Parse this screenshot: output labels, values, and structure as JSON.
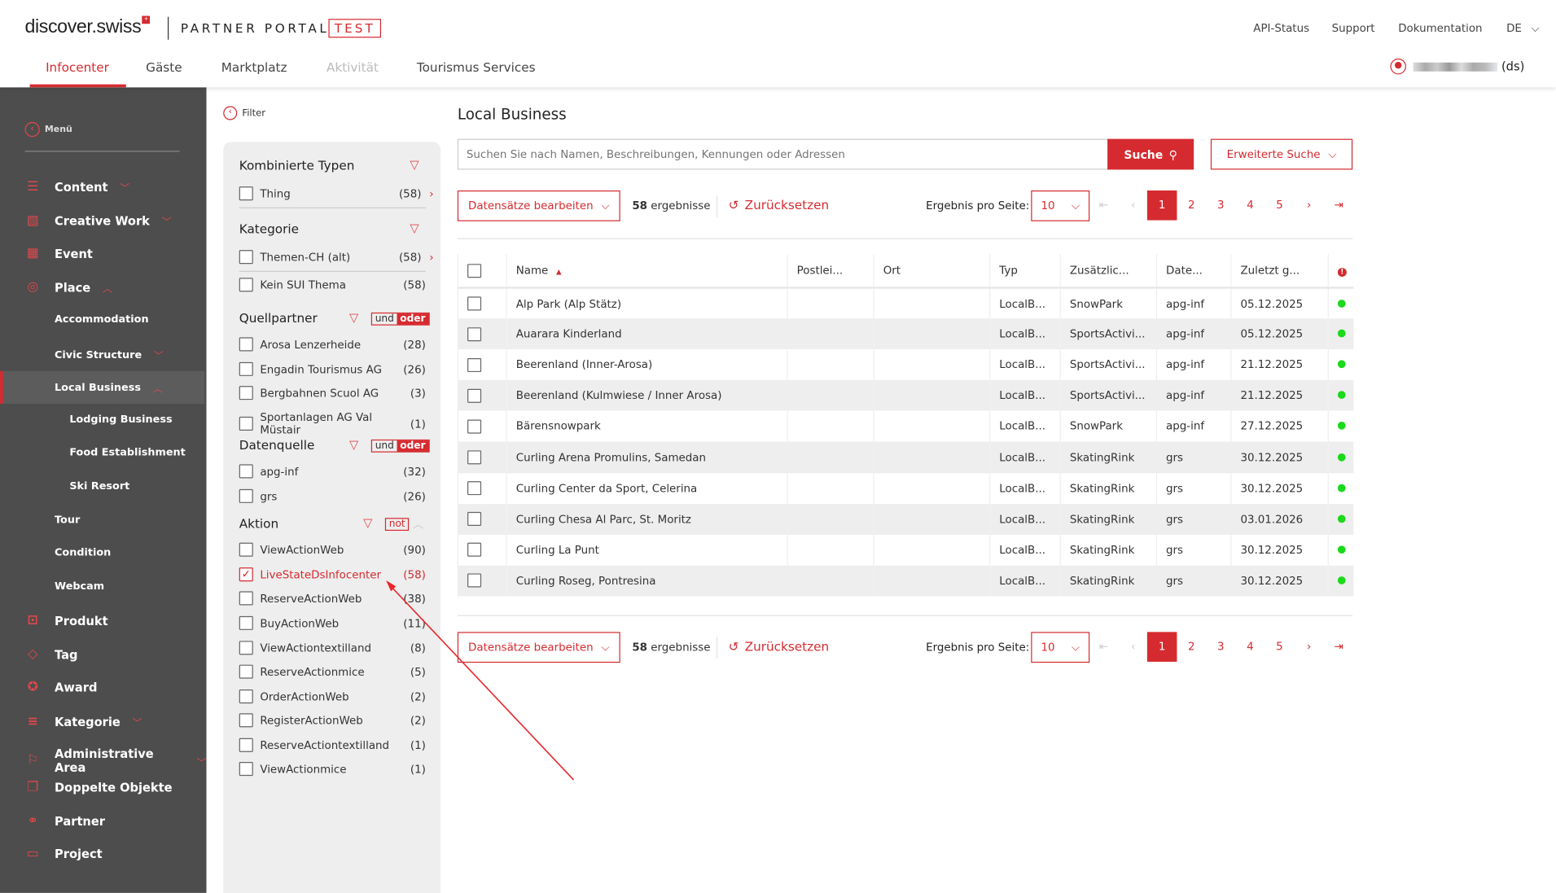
{
  "header": {
    "logo": "discover.swiss",
    "subtitle": "PARTNER PORTAL",
    "env_badge": "TEST",
    "nav": [
      {
        "label": "Infocenter",
        "state": "active"
      },
      {
        "label": "Gäste"
      },
      {
        "label": "Marktplatz"
      },
      {
        "label": "Aktivität",
        "state": "disabled"
      },
      {
        "label": "Tourismus Services"
      }
    ],
    "links": [
      "API-Status",
      "Support",
      "Dokumentation"
    ],
    "language": "DE",
    "user_suffix": "(ds)"
  },
  "sidebar": {
    "menu_label": "Menü",
    "items": [
      {
        "label": "Content",
        "icon": "list-icon",
        "expand": "down"
      },
      {
        "label": "Creative Work",
        "icon": "image-icon",
        "expand": "down"
      },
      {
        "label": "Event",
        "icon": "calendar-icon"
      },
      {
        "label": "Place",
        "icon": "map-pin-icon",
        "expand": "up"
      },
      {
        "label": "Accommodation"
      },
      {
        "label": "Civic Structure",
        "expand": "down"
      },
      {
        "label": "Local Business",
        "expand": "up",
        "selected": true
      },
      {
        "label": "Lodging Business"
      },
      {
        "label": "Food Establishment"
      },
      {
        "label": "Ski Resort"
      },
      {
        "label": "Tour"
      },
      {
        "label": "Condition"
      },
      {
        "label": "Webcam"
      },
      {
        "label": "Produkt",
        "icon": "box-icon"
      },
      {
        "label": "Tag",
        "icon": "tag-icon"
      },
      {
        "label": "Award",
        "icon": "award-icon"
      },
      {
        "label": "Kategorie",
        "icon": "lines-icon",
        "expand": "down"
      },
      {
        "label": "Administrative Area",
        "icon": "flag-icon",
        "expand": "down"
      },
      {
        "label": "Doppelte Objekte",
        "icon": "copy-icon"
      },
      {
        "label": "Partner",
        "icon": "handshake-icon"
      },
      {
        "label": "Project",
        "icon": "folder-icon"
      }
    ]
  },
  "filter": {
    "back_label": "Filter",
    "und": "und",
    "oder": "oder",
    "not": "not",
    "groups": [
      {
        "title": "Kombinierte Typen",
        "items": [
          {
            "label": "Thing",
            "count": "(58)",
            "more": true
          }
        ]
      },
      {
        "title": "Kategorie",
        "items": [
          {
            "label": "Themen-CH (alt)",
            "count": "(58)",
            "more": true
          },
          {
            "label": "Kein SUI Thema",
            "count": "(58)"
          }
        ]
      },
      {
        "title": "Quellpartner",
        "items": [
          {
            "label": "Arosa Lenzerheide",
            "count": "(28)"
          },
          {
            "label": "Engadin Tourismus AG",
            "count": "(26)"
          },
          {
            "label": "Bergbahnen Scuol AG",
            "count": "(3)"
          },
          {
            "label": "Sportanlagen AG Val Müstair",
            "count": "(1)"
          }
        ]
      },
      {
        "title": "Datenquelle",
        "items": [
          {
            "label": "apg-inf",
            "count": "(32)"
          },
          {
            "label": "grs",
            "count": "(26)"
          }
        ]
      },
      {
        "title": "Aktion",
        "items": [
          {
            "label": "ViewActionWeb",
            "count": "(90)"
          },
          {
            "label": "LiveStateDsInfocenter",
            "count": "(58)",
            "checked": true
          },
          {
            "label": "ReserveActionWeb",
            "count": "(38)"
          },
          {
            "label": "BuyActionWeb",
            "count": "(11)"
          },
          {
            "label": "ViewActiontextilland",
            "count": "(8)"
          },
          {
            "label": "ReserveActionmice",
            "count": "(5)"
          },
          {
            "label": "OrderActionWeb",
            "count": "(2)"
          },
          {
            "label": "RegisterActionWeb",
            "count": "(2)"
          },
          {
            "label": "ReserveActiontextilland",
            "count": "(1)"
          },
          {
            "label": "ViewActionmice",
            "count": "(1)"
          }
        ]
      }
    ]
  },
  "main": {
    "title": "Local Business",
    "search_placeholder": "Suchen Sie nach Namen, Beschreibungen, Kennungen oder Adressen",
    "search_button": "Suche",
    "advanced_search": "Erweiterte Suche",
    "toolbar": {
      "edit_records": "Datensätze bearbeiten",
      "result_count": "58",
      "result_label": "ergebnisse",
      "reset": "Zurücksetzen",
      "per_page_label": "Ergebnis pro Seite:",
      "per_page": "10",
      "pages": [
        "1",
        "2",
        "3",
        "4",
        "5"
      ],
      "current_page": "1"
    },
    "table": {
      "columns": [
        "Name",
        "Postlei...",
        "Ort",
        "Typ",
        "Zusätzlic...",
        "Date...",
        "Zuletzt g..."
      ],
      "rows": [
        [
          "Alp Park (Alp Stätz)",
          "",
          "",
          "LocalB...",
          "SnowPark",
          "apg-inf",
          "05.12.2025"
        ],
        [
          "Auarara Kinderland",
          "",
          "",
          "LocalB...",
          "SportsActivi...",
          "apg-inf",
          "05.12.2025"
        ],
        [
          "Beerenland (Inner-Arosa)",
          "",
          "",
          "LocalB...",
          "SportsActivi...",
          "apg-inf",
          "21.12.2025"
        ],
        [
          "Beerenland (Kulmwiese / Inner Arosa)",
          "",
          "",
          "LocalB...",
          "SportsActivi...",
          "apg-inf",
          "21.12.2025"
        ],
        [
          "Bärensnowpark",
          "",
          "",
          "LocalB...",
          "SnowPark",
          "apg-inf",
          "27.12.2025"
        ],
        [
          "Curling Arena Promulins, Samedan",
          "",
          "",
          "LocalB...",
          "SkatingRink",
          "grs",
          "30.12.2025"
        ],
        [
          "Curling Center da Sport, Celerina",
          "",
          "",
          "LocalB...",
          "SkatingRink",
          "grs",
          "30.12.2025"
        ],
        [
          "Curling Chesa Al Parc, St. Moritz",
          "",
          "",
          "LocalB...",
          "SkatingRink",
          "grs",
          "03.01.2026"
        ],
        [
          "Curling La Punt",
          "",
          "",
          "LocalB...",
          "SkatingRink",
          "grs",
          "30.12.2025"
        ],
        [
          "Curling Roseg, Pontresina",
          "",
          "",
          "LocalB...",
          "SkatingRink",
          "grs",
          "30.12.2025"
        ]
      ]
    }
  },
  "colors": {
    "accent": "#d52b30",
    "sidebar": "#4d4d4d",
    "status_ok": "#1bd91b"
  }
}
